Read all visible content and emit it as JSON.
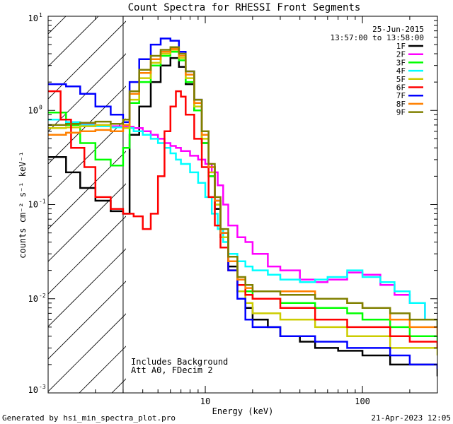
{
  "chart_data": {
    "type": "line",
    "title": "Count Spectra for RHESSI Front Segments",
    "date": "25-Jun-2015",
    "time_range": "13:57:00 to 13:58:00",
    "xlabel": "Energy (keV)",
    "ylabel": "counts cm⁻² s⁻¹ keV⁻¹",
    "xscale": "log",
    "yscale": "log",
    "xlim": [
      1,
      300
    ],
    "ylim": [
      0.001,
      10
    ],
    "x_ticks": [
      {
        "v": 10,
        "label": "10"
      },
      {
        "v": 100,
        "label": "100"
      }
    ],
    "y_ticks": [
      {
        "v": 10,
        "base": "10",
        "exp": "1"
      },
      {
        "v": 1,
        "base": "10",
        "exp": "0"
      },
      {
        "v": 0.1,
        "base": "10",
        "exp": "-1"
      },
      {
        "v": 0.01,
        "base": "10",
        "exp": "-2"
      },
      {
        "v": 0.001,
        "base": "10",
        "exp": "-3"
      }
    ],
    "hatched_region_xmax": 3,
    "annotations": [
      "Includes Background",
      "Att A0, FDecim 2"
    ],
    "footer_left": "Generated by hsi_min_spectra_plot.pro",
    "footer_right": "21-Apr-2023 12:05",
    "series": [
      {
        "name": "1F",
        "color": "#000000",
        "points": [
          [
            1,
            0.32
          ],
          [
            1.3,
            0.22
          ],
          [
            1.6,
            0.15
          ],
          [
            2.0,
            0.11
          ],
          [
            2.5,
            0.085
          ],
          [
            3.0,
            0.08
          ],
          [
            3.3,
            0.55
          ],
          [
            3.8,
            1.1
          ],
          [
            4.5,
            2.0
          ],
          [
            5.2,
            3.0
          ],
          [
            6.0,
            3.6
          ],
          [
            6.8,
            2.9
          ],
          [
            7.5,
            1.9
          ],
          [
            8.5,
            1.0
          ],
          [
            9.5,
            0.45
          ],
          [
            10.5,
            0.2
          ],
          [
            11.5,
            0.09
          ],
          [
            12.5,
            0.045
          ],
          [
            14,
            0.022
          ],
          [
            16,
            0.012
          ],
          [
            18,
            0.008
          ],
          [
            20,
            0.006
          ],
          [
            25,
            0.005
          ],
          [
            30,
            0.004
          ],
          [
            40,
            0.0035
          ],
          [
            50,
            0.003
          ],
          [
            70,
            0.0028
          ],
          [
            100,
            0.0025
          ],
          [
            150,
            0.002
          ],
          [
            200,
            0.002
          ],
          [
            300,
            0.0015
          ]
        ]
      },
      {
        "name": "2F",
        "color": "#ff00ff",
        "points": [
          [
            1,
            0.8
          ],
          [
            1.3,
            0.75
          ],
          [
            1.6,
            0.72
          ],
          [
            2.0,
            0.7
          ],
          [
            2.5,
            0.68
          ],
          [
            3.0,
            0.67
          ],
          [
            3.5,
            0.65
          ],
          [
            4.0,
            0.6
          ],
          [
            4.5,
            0.55
          ],
          [
            5.0,
            0.5
          ],
          [
            5.5,
            0.45
          ],
          [
            6.0,
            0.42
          ],
          [
            6.5,
            0.4
          ],
          [
            7.0,
            0.37
          ],
          [
            8.0,
            0.33
          ],
          [
            9.0,
            0.3
          ],
          [
            10,
            0.27
          ],
          [
            11,
            0.22
          ],
          [
            12,
            0.16
          ],
          [
            13,
            0.1
          ],
          [
            14,
            0.06
          ],
          [
            16,
            0.045
          ],
          [
            18,
            0.04
          ],
          [
            20,
            0.03
          ],
          [
            25,
            0.022
          ],
          [
            30,
            0.02
          ],
          [
            40,
            0.016
          ],
          [
            50,
            0.015
          ],
          [
            60,
            0.016
          ],
          [
            80,
            0.019
          ],
          [
            100,
            0.018
          ],
          [
            130,
            0.014
          ],
          [
            160,
            0.011
          ],
          [
            200,
            0.009
          ],
          [
            250,
            0.006
          ],
          [
            300,
            0.005
          ]
        ]
      },
      {
        "name": "3F",
        "color": "#00ff00",
        "points": [
          [
            1,
            0.95
          ],
          [
            1.3,
            0.7
          ],
          [
            1.6,
            0.45
          ],
          [
            2.0,
            0.3
          ],
          [
            2.5,
            0.26
          ],
          [
            3.0,
            0.4
          ],
          [
            3.3,
            1.2
          ],
          [
            3.8,
            2.0
          ],
          [
            4.5,
            3.0
          ],
          [
            5.2,
            3.8
          ],
          [
            6.0,
            4.2
          ],
          [
            6.8,
            3.4
          ],
          [
            7.5,
            2.0
          ],
          [
            8.5,
            1.0
          ],
          [
            9.5,
            0.45
          ],
          [
            10.5,
            0.2
          ],
          [
            11.5,
            0.1
          ],
          [
            12.5,
            0.05
          ],
          [
            14,
            0.025
          ],
          [
            16,
            0.014
          ],
          [
            18,
            0.012
          ],
          [
            20,
            0.01
          ],
          [
            30,
            0.009
          ],
          [
            50,
            0.008
          ],
          [
            80,
            0.007
          ],
          [
            100,
            0.006
          ],
          [
            150,
            0.005
          ],
          [
            200,
            0.004
          ],
          [
            300,
            0.003
          ]
        ]
      },
      {
        "name": "4F",
        "color": "#00ffff",
        "points": [
          [
            1,
            0.8
          ],
          [
            1.3,
            0.75
          ],
          [
            1.6,
            0.7
          ],
          [
            2.0,
            0.68
          ],
          [
            2.5,
            0.66
          ],
          [
            3.0,
            0.65
          ],
          [
            3.5,
            0.6
          ],
          [
            4.0,
            0.55
          ],
          [
            4.5,
            0.5
          ],
          [
            5.0,
            0.45
          ],
          [
            5.5,
            0.4
          ],
          [
            6.0,
            0.35
          ],
          [
            6.5,
            0.3
          ],
          [
            7.0,
            0.27
          ],
          [
            8.0,
            0.22
          ],
          [
            9.0,
            0.17
          ],
          [
            10,
            0.12
          ],
          [
            11,
            0.08
          ],
          [
            12,
            0.055
          ],
          [
            13,
            0.04
          ],
          [
            14,
            0.03
          ],
          [
            16,
            0.025
          ],
          [
            18,
            0.022
          ],
          [
            20,
            0.02
          ],
          [
            25,
            0.018
          ],
          [
            30,
            0.016
          ],
          [
            40,
            0.015
          ],
          [
            50,
            0.016
          ],
          [
            60,
            0.017
          ],
          [
            80,
            0.02
          ],
          [
            100,
            0.017
          ],
          [
            130,
            0.015
          ],
          [
            160,
            0.012
          ],
          [
            200,
            0.009
          ],
          [
            250,
            0.006
          ],
          [
            300,
            0.004
          ]
        ]
      },
      {
        "name": "5F",
        "color": "#cccc00",
        "points": [
          [
            1,
            0.65
          ],
          [
            1.3,
            0.66
          ],
          [
            1.6,
            0.68
          ],
          [
            2.0,
            0.7
          ],
          [
            2.5,
            0.6
          ],
          [
            3.0,
            0.65
          ],
          [
            3.3,
            1.3
          ],
          [
            3.8,
            2.2
          ],
          [
            4.5,
            3.2
          ],
          [
            5.2,
            4.0
          ],
          [
            6.0,
            4.4
          ],
          [
            6.8,
            3.6
          ],
          [
            7.5,
            2.2
          ],
          [
            8.5,
            1.1
          ],
          [
            9.5,
            0.5
          ],
          [
            10.5,
            0.22
          ],
          [
            11.5,
            0.1
          ],
          [
            12.5,
            0.045
          ],
          [
            14,
            0.02
          ],
          [
            16,
            0.012
          ],
          [
            18,
            0.009
          ],
          [
            20,
            0.007
          ],
          [
            30,
            0.006
          ],
          [
            50,
            0.005
          ],
          [
            80,
            0.004
          ],
          [
            100,
            0.004
          ],
          [
            150,
            0.003
          ],
          [
            200,
            0.003
          ],
          [
            300,
            0.0025
          ]
        ]
      },
      {
        "name": "6F",
        "color": "#ff0000",
        "points": [
          [
            1,
            1.6
          ],
          [
            1.2,
            0.8
          ],
          [
            1.4,
            0.4
          ],
          [
            1.7,
            0.25
          ],
          [
            2.0,
            0.12
          ],
          [
            2.5,
            0.09
          ],
          [
            3.0,
            0.08
          ],
          [
            3.5,
            0.075
          ],
          [
            4.0,
            0.055
          ],
          [
            4.5,
            0.08
          ],
          [
            5.0,
            0.2
          ],
          [
            5.5,
            0.6
          ],
          [
            6.0,
            1.1
          ],
          [
            6.5,
            1.6
          ],
          [
            7.0,
            1.4
          ],
          [
            7.5,
            0.9
          ],
          [
            8.5,
            0.5
          ],
          [
            9.5,
            0.25
          ],
          [
            10.5,
            0.12
          ],
          [
            11.5,
            0.06
          ],
          [
            12.5,
            0.035
          ],
          [
            14,
            0.02
          ],
          [
            16,
            0.014
          ],
          [
            18,
            0.011
          ],
          [
            20,
            0.01
          ],
          [
            30,
            0.008
          ],
          [
            50,
            0.006
          ],
          [
            80,
            0.005
          ],
          [
            100,
            0.005
          ],
          [
            150,
            0.004
          ],
          [
            200,
            0.0035
          ],
          [
            300,
            0.003
          ]
        ]
      },
      {
        "name": "7F",
        "color": "#0000ff",
        "points": [
          [
            1,
            1.9
          ],
          [
            1.3,
            1.8
          ],
          [
            1.6,
            1.5
          ],
          [
            2.0,
            1.1
          ],
          [
            2.5,
            0.9
          ],
          [
            3.0,
            0.75
          ],
          [
            3.3,
            2.0
          ],
          [
            3.8,
            3.5
          ],
          [
            4.5,
            5.0
          ],
          [
            5.2,
            5.8
          ],
          [
            6.0,
            5.5
          ],
          [
            6.8,
            4.2
          ],
          [
            7.5,
            2.6
          ],
          [
            8.5,
            1.3
          ],
          [
            9.5,
            0.6
          ],
          [
            10.5,
            0.25
          ],
          [
            11.5,
            0.11
          ],
          [
            12.5,
            0.05
          ],
          [
            14,
            0.02
          ],
          [
            16,
            0.01
          ],
          [
            18,
            0.006
          ],
          [
            20,
            0.005
          ],
          [
            30,
            0.004
          ],
          [
            50,
            0.0035
          ],
          [
            80,
            0.003
          ],
          [
            100,
            0.003
          ],
          [
            150,
            0.0025
          ],
          [
            200,
            0.002
          ],
          [
            300,
            0.0018
          ]
        ]
      },
      {
        "name": "8F",
        "color": "#ff8000",
        "points": [
          [
            1,
            0.55
          ],
          [
            1.3,
            0.58
          ],
          [
            1.6,
            0.6
          ],
          [
            2.0,
            0.62
          ],
          [
            2.5,
            0.6
          ],
          [
            3.0,
            0.7
          ],
          [
            3.3,
            1.5
          ],
          [
            3.8,
            2.5
          ],
          [
            4.5,
            3.5
          ],
          [
            5.2,
            4.2
          ],
          [
            6.0,
            4.5
          ],
          [
            6.8,
            3.8
          ],
          [
            7.5,
            2.4
          ],
          [
            8.5,
            1.2
          ],
          [
            9.5,
            0.55
          ],
          [
            10.5,
            0.25
          ],
          [
            11.5,
            0.11
          ],
          [
            12.5,
            0.05
          ],
          [
            14,
            0.025
          ],
          [
            16,
            0.016
          ],
          [
            18,
            0.013
          ],
          [
            20,
            0.012
          ],
          [
            30,
            0.012
          ],
          [
            50,
            0.01
          ],
          [
            80,
            0.009
          ],
          [
            100,
            0.008
          ],
          [
            150,
            0.006
          ],
          [
            200,
            0.005
          ],
          [
            300,
            0.004
          ]
        ]
      },
      {
        "name": "9F",
        "color": "#808000",
        "points": [
          [
            1,
            0.7
          ],
          [
            1.3,
            0.72
          ],
          [
            1.6,
            0.74
          ],
          [
            2.0,
            0.76
          ],
          [
            2.5,
            0.72
          ],
          [
            3.0,
            0.8
          ],
          [
            3.3,
            1.6
          ],
          [
            3.8,
            2.7
          ],
          [
            4.5,
            3.8
          ],
          [
            5.2,
            4.4
          ],
          [
            6.0,
            4.7
          ],
          [
            6.8,
            4.0
          ],
          [
            7.5,
            2.6
          ],
          [
            8.5,
            1.3
          ],
          [
            9.5,
            0.6
          ],
          [
            10.5,
            0.27
          ],
          [
            11.5,
            0.12
          ],
          [
            12.5,
            0.055
          ],
          [
            14,
            0.028
          ],
          [
            16,
            0.017
          ],
          [
            18,
            0.014
          ],
          [
            20,
            0.012
          ],
          [
            30,
            0.011
          ],
          [
            50,
            0.01
          ],
          [
            80,
            0.009
          ],
          [
            100,
            0.008
          ],
          [
            150,
            0.007
          ],
          [
            200,
            0.006
          ],
          [
            300,
            0.005
          ]
        ]
      }
    ]
  }
}
